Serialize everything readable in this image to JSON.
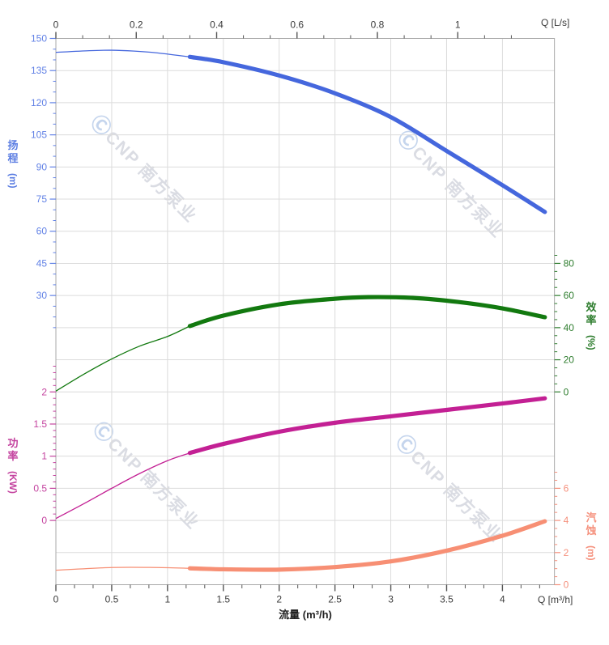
{
  "chart_data": {
    "type": "line",
    "title": "",
    "x_axis_bottom": {
      "title": "流量 (m³/h)",
      "unit_label": "Q [m³/h]",
      "tick_labels": [
        "0",
        "0.5",
        "1",
        "1.5",
        "2",
        "2.5",
        "3",
        "3.5",
        "4"
      ],
      "major_step": 0.5,
      "minors_per_major": 3,
      "range": [
        0,
        4.466
      ],
      "color": "#3a3a3a"
    },
    "x_axis_top": {
      "unit_label": "Q [L/s]",
      "tick_labels": [
        "0",
        "0.2",
        "0.4",
        "0.6",
        "0.8",
        "1"
      ],
      "major_step": 0.2,
      "minors_per_major": 3,
      "m3h_per_unit": 3.6,
      "color": "#3a3a3a"
    },
    "series": [
      {
        "id": "head",
        "name": "扬程",
        "unit": "(m)",
        "color": "#4567dd",
        "label_color": "#6282e6",
        "side": "left",
        "zero_row": 10,
        "units_per_row": 15,
        "tick_labels": [
          "150",
          "135",
          "120",
          "105",
          "90",
          "75",
          "60",
          "45",
          "30"
        ],
        "minor_step": 5,
        "minor_range": [
          15,
          150
        ],
        "thick_from_q": 1.2,
        "points": [
          [
            0,
            143.5
          ],
          [
            0.3,
            144.3
          ],
          [
            0.5,
            144.5
          ],
          [
            0.7,
            144.1
          ],
          [
            0.9,
            143.3
          ],
          [
            1.2,
            141.4
          ],
          [
            1.5,
            138.9
          ],
          [
            2,
            132.7
          ],
          [
            2.5,
            124.4
          ],
          [
            3,
            113.3
          ],
          [
            3.5,
            97.5
          ],
          [
            4,
            81.5
          ],
          [
            4.38,
            69
          ]
        ]
      },
      {
        "id": "efficiency",
        "name": "效率",
        "unit": "(%)",
        "color": "#12790f",
        "label_color": "#2e7d2e",
        "side": "right",
        "zero_row": 11,
        "units_per_row": 20,
        "tick_labels": [
          "80",
          "60",
          "40",
          "20",
          "0"
        ],
        "minor_step": 5,
        "minor_range": [
          0,
          85
        ],
        "thick_from_q": 1.2,
        "points": [
          [
            0,
            0.5
          ],
          [
            0.25,
            11
          ],
          [
            0.5,
            20.5
          ],
          [
            0.75,
            28.5
          ],
          [
            1,
            34.5
          ],
          [
            1.2,
            41
          ],
          [
            1.5,
            47.5
          ],
          [
            2,
            54.5
          ],
          [
            2.5,
            58
          ],
          [
            2.8,
            59
          ],
          [
            3.2,
            58.5
          ],
          [
            3.6,
            56
          ],
          [
            4,
            52
          ],
          [
            4.38,
            46.5
          ]
        ]
      },
      {
        "id": "power",
        "name": "功率",
        "unit": "(KW)",
        "color": "#c32094",
        "label_color": "#c4439f",
        "side": "left",
        "zero_row": 15,
        "units_per_row": 0.5,
        "tick_labels": [
          "2",
          "1.5",
          "1",
          "0.5",
          "0"
        ],
        "minor_step": 0.1,
        "minor_range": [
          0,
          2.4
        ],
        "thick_from_q": 1.2,
        "points": [
          [
            0,
            0.03
          ],
          [
            0.25,
            0.26
          ],
          [
            0.5,
            0.5
          ],
          [
            0.75,
            0.73
          ],
          [
            1,
            0.93
          ],
          [
            1.2,
            1.05
          ],
          [
            1.5,
            1.19
          ],
          [
            2,
            1.38
          ],
          [
            2.5,
            1.52
          ],
          [
            3,
            1.62
          ],
          [
            3.5,
            1.72
          ],
          [
            4,
            1.82
          ],
          [
            4.38,
            1.9
          ]
        ]
      },
      {
        "id": "npsh",
        "name": "汽蚀",
        "unit": "(m)",
        "color": "#f78f74",
        "label_color": "#f5907c",
        "side": "right",
        "zero_row": 17,
        "units_per_row": 2,
        "tick_labels": [
          "6",
          "4",
          "2",
          "0"
        ],
        "minor_step": 0.5,
        "minor_range": [
          0,
          7
        ],
        "thick_from_q": 1.2,
        "points": [
          [
            0,
            0.9
          ],
          [
            0.5,
            1.07
          ],
          [
            0.9,
            1.07
          ],
          [
            1.2,
            1.02
          ],
          [
            1.5,
            0.96
          ],
          [
            2,
            0.94
          ],
          [
            2.5,
            1.1
          ],
          [
            3,
            1.45
          ],
          [
            3.5,
            2.12
          ],
          [
            4,
            3.05
          ],
          [
            4.38,
            3.95
          ]
        ]
      }
    ],
    "watermark": {
      "logo_glyph": "Ⓒ",
      "text": "CNP 南方泵业"
    },
    "grid": {
      "rows": 17,
      "col_step_q": 0.5,
      "color": "#dcdcdc",
      "border_color": "#a9a9a9"
    },
    "legend_position": "none",
    "x_range_m3h": [
      0,
      4.466
    ],
    "curve_q_end": 4.38
  }
}
